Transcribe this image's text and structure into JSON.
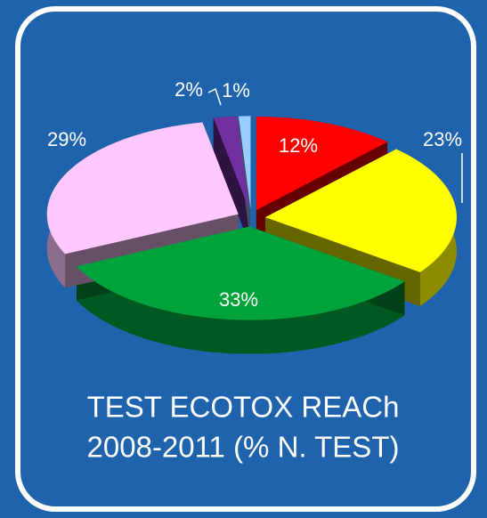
{
  "chart_data": {
    "type": "pie",
    "title": [
      "TEST ECOTOX REACh",
      "2008-2011 (% N. TEST)"
    ],
    "values": [
      12,
      23,
      33,
      29,
      2,
      1
    ],
    "value_labels": [
      "12%",
      "23%",
      "33%",
      "29%",
      "2%",
      "1%"
    ],
    "colors": [
      "#ff0000",
      "#ffff00",
      "#00a23c",
      "#ffc8ff",
      "#7030a0",
      "#99ccff"
    ]
  }
}
